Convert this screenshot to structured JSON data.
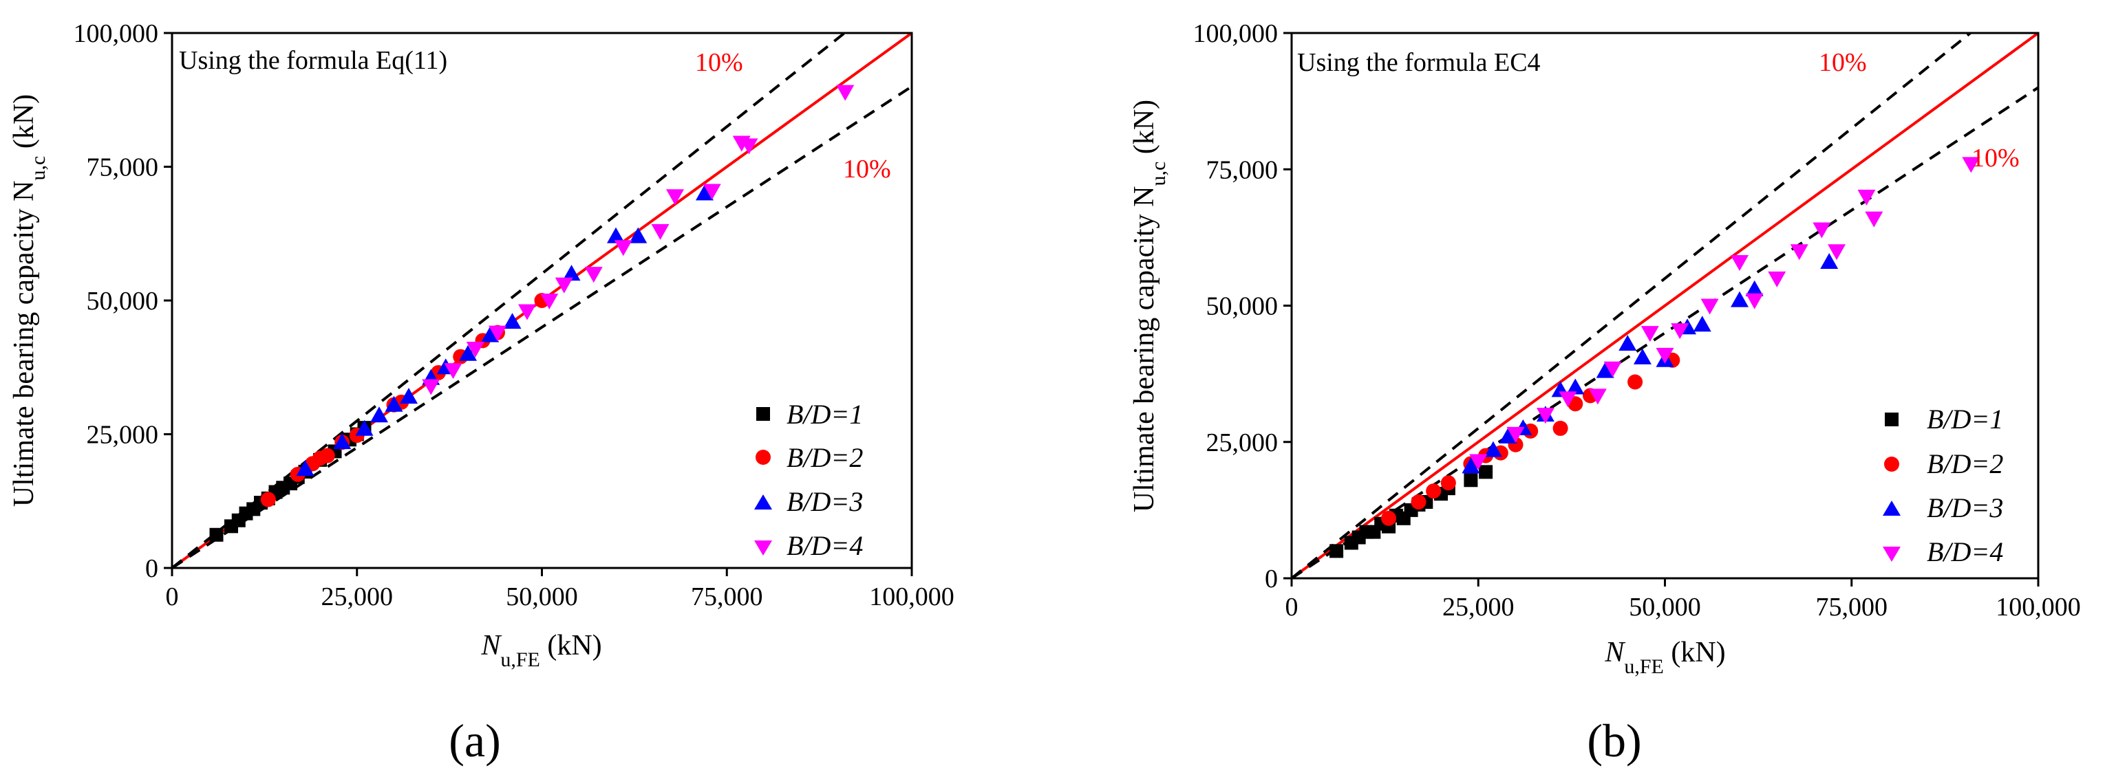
{
  "colors": {
    "series1": "#000000",
    "series2": "#ff0000",
    "series3": "#0000ff",
    "series4": "#ff00ff",
    "reference": "#ff0000"
  },
  "chart_data": [
    {
      "panel_label": "(a)",
      "type": "scatter",
      "annotation": "Using the formula Eq(11)",
      "upper_band_label": "10%",
      "lower_band_label": "10%",
      "xlabel": {
        "main": "N",
        "sub": "u,FE",
        "unit": " (kN)"
      },
      "ylabel": {
        "main": "Ultimate bearing capacity N",
        "sub": "u,c",
        "unit": " (kN)"
      },
      "xlim": [
        0,
        100000
      ],
      "ylim": [
        0,
        100000
      ],
      "xticks": [
        0,
        25000,
        50000,
        75000,
        100000
      ],
      "yticks": [
        0,
        25000,
        50000,
        75000,
        100000
      ],
      "xtick_labels": [
        "0",
        "25,000",
        "50,000",
        "75,000",
        "100,000"
      ],
      "ytick_labels": [
        "0",
        "25,000",
        "50,000",
        "75,000",
        "100,000"
      ],
      "reference_line": {
        "slope": 1.0
      },
      "bands": [
        1.1,
        0.9
      ],
      "series": [
        {
          "name": "B/D=1",
          "legend_label": "B/D=1",
          "marker": "square",
          "x": [
            6000,
            8000,
            9000,
            10000,
            11000,
            12000,
            13000,
            14000,
            15000,
            16000,
            17000,
            18000,
            20000,
            22000,
            24000,
            25000,
            26000
          ],
          "y": [
            6200,
            7800,
            8900,
            10200,
            11000,
            12200,
            13000,
            14200,
            15000,
            15800,
            17000,
            18000,
            20200,
            21800,
            24000,
            25000,
            26200
          ]
        },
        {
          "name": "B/D=2",
          "legend_label": "B/D=2",
          "marker": "circle",
          "x": [
            13000,
            17000,
            19000,
            20000,
            21000,
            23000,
            25000,
            30000,
            31000,
            36000,
            39000,
            42000,
            44000,
            50000
          ],
          "y": [
            12800,
            17500,
            19500,
            20500,
            21000,
            23500,
            24800,
            30500,
            31000,
            36500,
            39500,
            42500,
            44000,
            50000
          ]
        },
        {
          "name": "B/D=3",
          "legend_label": "B/D=3",
          "marker": "triangle-up",
          "x": [
            18000,
            23000,
            26000,
            28000,
            30000,
            32000,
            35000,
            37000,
            40000,
            43000,
            46000,
            54000,
            60000,
            63000,
            72000
          ],
          "y": [
            18500,
            23500,
            26000,
            28500,
            30500,
            32000,
            35500,
            37500,
            40000,
            43500,
            46000,
            55000,
            62000,
            62000,
            70000
          ]
        },
        {
          "name": "B/D=4",
          "legend_label": "B/D=4",
          "marker": "triangle-down",
          "x": [
            35000,
            38000,
            41000,
            44000,
            48000,
            51000,
            53000,
            57000,
            61000,
            66000,
            68000,
            73000,
            77000,
            78000,
            91000
          ],
          "y": [
            34000,
            37000,
            41000,
            44000,
            48000,
            50000,
            53000,
            55000,
            60000,
            63000,
            69500,
            70500,
            79500,
            79000,
            89000
          ]
        }
      ]
    },
    {
      "panel_label": "(b)",
      "type": "scatter",
      "annotation": "Using the formula EC4",
      "upper_band_label": "10%",
      "lower_band_label": "10%",
      "xlabel": {
        "main": "N",
        "sub": "u,FE",
        "unit": " (kN)"
      },
      "ylabel": {
        "main": "Ultimate bearing capacity N",
        "sub": "u,c",
        "unit": " (kN)"
      },
      "xlim": [
        0,
        100000
      ],
      "ylim": [
        0,
        100000
      ],
      "xticks": [
        0,
        25000,
        50000,
        75000,
        100000
      ],
      "yticks": [
        0,
        25000,
        50000,
        75000,
        100000
      ],
      "xtick_labels": [
        "0",
        "25,000",
        "50,000",
        "75,000",
        "100,000"
      ],
      "ytick_labels": [
        "0",
        "25,000",
        "50,000",
        "75,000",
        "100,000"
      ],
      "reference_line": {
        "slope": 1.0
      },
      "bands": [
        1.1,
        0.9
      ],
      "series": [
        {
          "name": "B/D=1",
          "legend_label": "B/D=1",
          "marker": "square",
          "x": [
            6000,
            8000,
            9000,
            10000,
            11000,
            12000,
            13000,
            14000,
            15000,
            16000,
            17000,
            18000,
            20000,
            21000,
            24000,
            26000
          ],
          "y": [
            5000,
            6500,
            7500,
            8500,
            8500,
            10000,
            9500,
            11500,
            11000,
            12500,
            13500,
            14000,
            15500,
            16500,
            18000,
            19500
          ]
        },
        {
          "name": "B/D=2",
          "legend_label": "B/D=2",
          "marker": "circle",
          "x": [
            13000,
            17000,
            19000,
            21000,
            24000,
            26000,
            28000,
            30000,
            32000,
            36000,
            38000,
            40000,
            46000,
            51000
          ],
          "y": [
            11000,
            14000,
            16000,
            17500,
            21000,
            22500,
            23000,
            24500,
            27000,
            27500,
            32000,
            33500,
            36000,
            40000
          ]
        },
        {
          "name": "B/D=3",
          "legend_label": "B/D=3",
          "marker": "triangle-up",
          "x": [
            24000,
            27000,
            29000,
            31000,
            34000,
            36000,
            38000,
            42000,
            45000,
            47000,
            50000,
            53000,
            55000,
            60000,
            62000,
            72000
          ],
          "y": [
            20500,
            23500,
            26000,
            27500,
            30000,
            34500,
            35000,
            38000,
            43000,
            40500,
            40000,
            46000,
            46500,
            51000,
            53000,
            58000
          ]
        },
        {
          "name": "B/D=4",
          "legend_label": "B/D=4",
          "marker": "triangle-down",
          "x": [
            25000,
            30000,
            34000,
            37000,
            41000,
            43000,
            48000,
            50000,
            52000,
            56000,
            60000,
            62000,
            65000,
            68000,
            71000,
            73000,
            77000,
            78000,
            91000
          ],
          "y": [
            21500,
            26500,
            30000,
            33000,
            33500,
            38500,
            45000,
            41000,
            45500,
            50000,
            58000,
            51000,
            55000,
            60000,
            64000,
            60000,
            70000,
            66000,
            76000
          ]
        }
      ]
    }
  ]
}
